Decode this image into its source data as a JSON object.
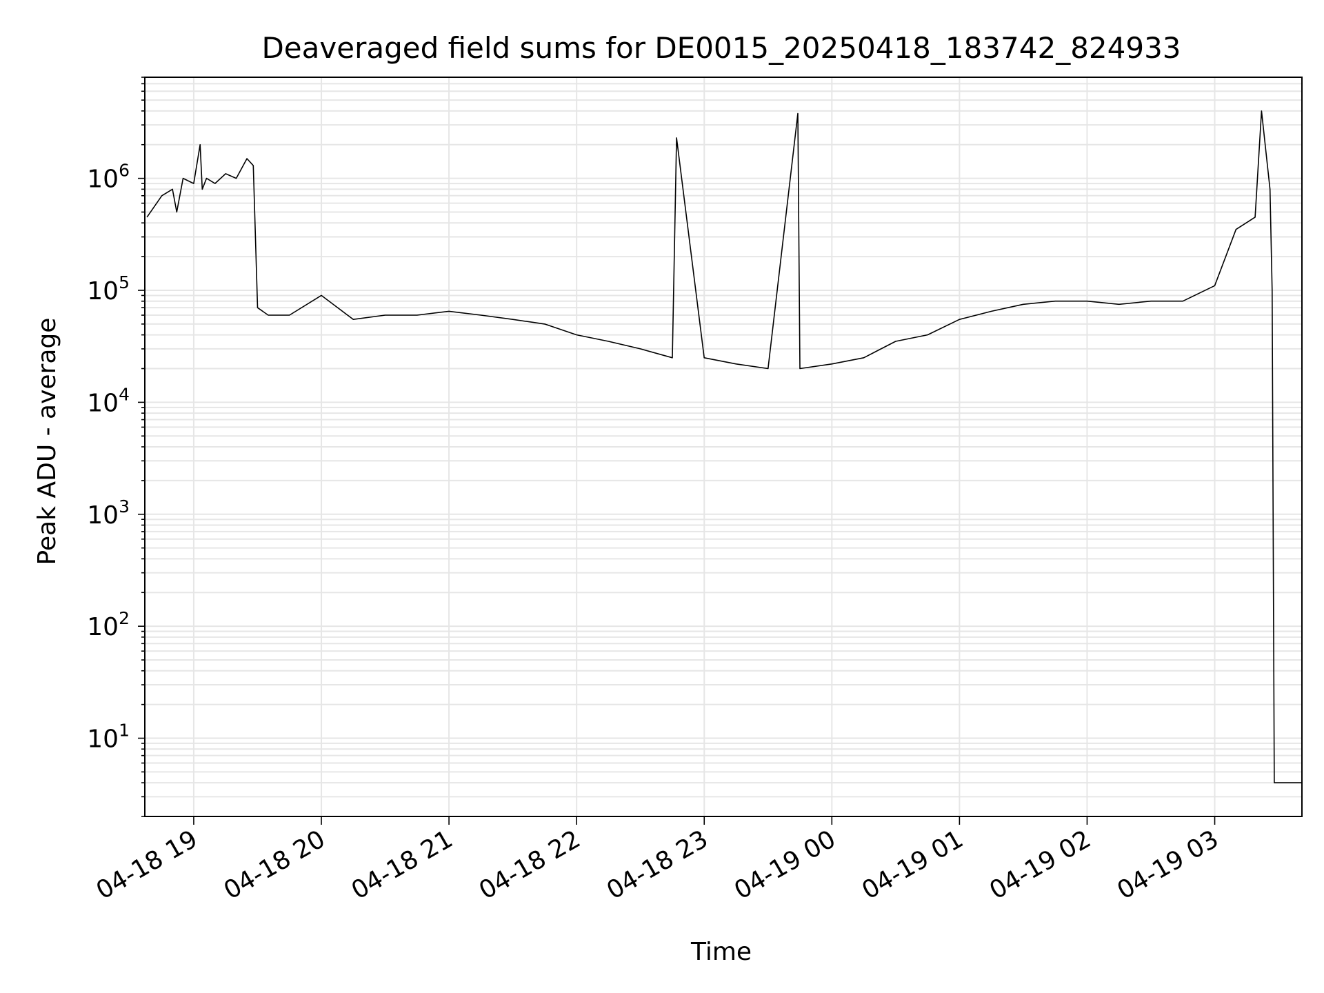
{
  "chart_data": {
    "type": "line",
    "title": "Deaveraged field sums for DE0015_20250418_183742_824933",
    "xlabel": "Time",
    "ylabel": "Peak ADU - average",
    "yscale": "log",
    "ylim": [
      2,
      8000000
    ],
    "xlim": [
      "2025-04-18 18:37",
      "2025-04-19 03:41"
    ],
    "grid": true,
    "line_color": "#000000",
    "x_ticks": [
      {
        "label": "04-18 19",
        "time": "2025-04-18 19:00"
      },
      {
        "label": "04-18 20",
        "time": "2025-04-18 20:00"
      },
      {
        "label": "04-18 21",
        "time": "2025-04-18 21:00"
      },
      {
        "label": "04-18 22",
        "time": "2025-04-18 22:00"
      },
      {
        "label": "04-18 23",
        "time": "2025-04-18 23:00"
      },
      {
        "label": "04-19 00",
        "time": "2025-04-19 00:00"
      },
      {
        "label": "04-19 01",
        "time": "2025-04-19 01:00"
      },
      {
        "label": "04-19 02",
        "time": "2025-04-19 02:00"
      },
      {
        "label": "04-19 03",
        "time": "2025-04-19 03:00"
      }
    ],
    "y_ticks": [
      {
        "base": "10",
        "exp": "1",
        "value": 10
      },
      {
        "base": "10",
        "exp": "2",
        "value": 100
      },
      {
        "base": "10",
        "exp": "3",
        "value": 1000
      },
      {
        "base": "10",
        "exp": "4",
        "value": 10000
      },
      {
        "base": "10",
        "exp": "5",
        "value": 100000
      },
      {
        "base": "10",
        "exp": "6",
        "value": 1000000
      }
    ],
    "series": [
      {
        "x": [
          "2025-04-18 18:38",
          "2025-04-18 18:45",
          "2025-04-18 18:50",
          "2025-04-18 18:52",
          "2025-04-18 18:55",
          "2025-04-18 19:00",
          "2025-04-18 19:03",
          "2025-04-18 19:04",
          "2025-04-18 19:06",
          "2025-04-18 19:10",
          "2025-04-18 19:15",
          "2025-04-18 19:20",
          "2025-04-18 19:25",
          "2025-04-18 19:28",
          "2025-04-18 19:30",
          "2025-04-18 19:35",
          "2025-04-18 19:45",
          "2025-04-18 20:00",
          "2025-04-18 20:15",
          "2025-04-18 20:30",
          "2025-04-18 20:45",
          "2025-04-18 21:00",
          "2025-04-18 21:15",
          "2025-04-18 21:30",
          "2025-04-18 21:45",
          "2025-04-18 22:00",
          "2025-04-18 22:15",
          "2025-04-18 22:30",
          "2025-04-18 22:45",
          "2025-04-18 22:47",
          "2025-04-18 23:00",
          "2025-04-18 23:15",
          "2025-04-18 23:30",
          "2025-04-18 23:44",
          "2025-04-18 23:45",
          "2025-04-19 00:00",
          "2025-04-19 00:15",
          "2025-04-19 00:30",
          "2025-04-19 00:45",
          "2025-04-19 01:00",
          "2025-04-19 01:15",
          "2025-04-19 01:30",
          "2025-04-19 01:45",
          "2025-04-19 02:00",
          "2025-04-19 02:15",
          "2025-04-19 02:30",
          "2025-04-19 02:45",
          "2025-04-19 03:00",
          "2025-04-19 03:10",
          "2025-04-19 03:19",
          "2025-04-19 03:22",
          "2025-04-19 03:25",
          "2025-04-19 03:26",
          "2025-04-19 03:27",
          "2025-04-19 03:28",
          "2025-04-19 03:41"
        ],
        "y": [
          450000,
          700000,
          800000,
          500000,
          1000000,
          900000,
          2000000,
          800000,
          1000000,
          900000,
          1100000,
          1000000,
          1500000,
          1300000,
          70000,
          60000,
          60000,
          90000,
          55000,
          60000,
          60000,
          65000,
          60000,
          55000,
          50000,
          40000,
          35000,
          30000,
          25000,
          2300000,
          25000,
          22000,
          20000,
          3800000,
          20000,
          22000,
          25000,
          35000,
          40000,
          55000,
          65000,
          75000,
          80000,
          80000,
          75000,
          80000,
          80000,
          110000,
          350000,
          450000,
          4000000,
          1200000,
          800000,
          100000,
          4,
          4
        ]
      }
    ]
  }
}
